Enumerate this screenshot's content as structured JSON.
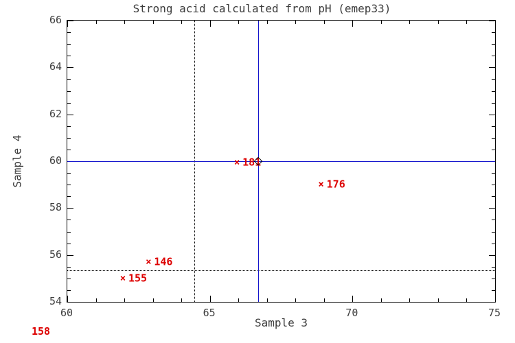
{
  "colors": {
    "crosshair_blue": "#1414cc",
    "point_red": "#dd0000",
    "axis_black": "#000000",
    "text_gray": "#3d3d3d"
  },
  "chart_data": {
    "type": "scatter",
    "title": "Strong acid calculated from pH (emep33)",
    "xlabel": "Sample 3",
    "ylabel": "Sample 4",
    "xlim": [
      60,
      75
    ],
    "ylim": [
      54,
      66
    ],
    "x_major_ticks": [
      60,
      65,
      70,
      75
    ],
    "x_minor_step": 1,
    "y_major_ticks": [
      54,
      56,
      58,
      60,
      62,
      64,
      66
    ],
    "y_minor_step": 0.5,
    "grid": false,
    "marker_symbol": "×",
    "points": [
      {
        "label": "181",
        "x": 65.95,
        "y": 59.95
      },
      {
        "label": "176",
        "x": 68.9,
        "y": 59.0
      },
      {
        "label": "146",
        "x": 62.85,
        "y": 55.7
      },
      {
        "label": "155",
        "x": 61.95,
        "y": 55.0
      }
    ],
    "crosshair_solid": {
      "x": 66.7,
      "y": 60.0,
      "marker": "open-diamond"
    },
    "crosshair_dotted": {
      "x": 64.45,
      "y": 55.35
    },
    "corner_label": "158"
  }
}
